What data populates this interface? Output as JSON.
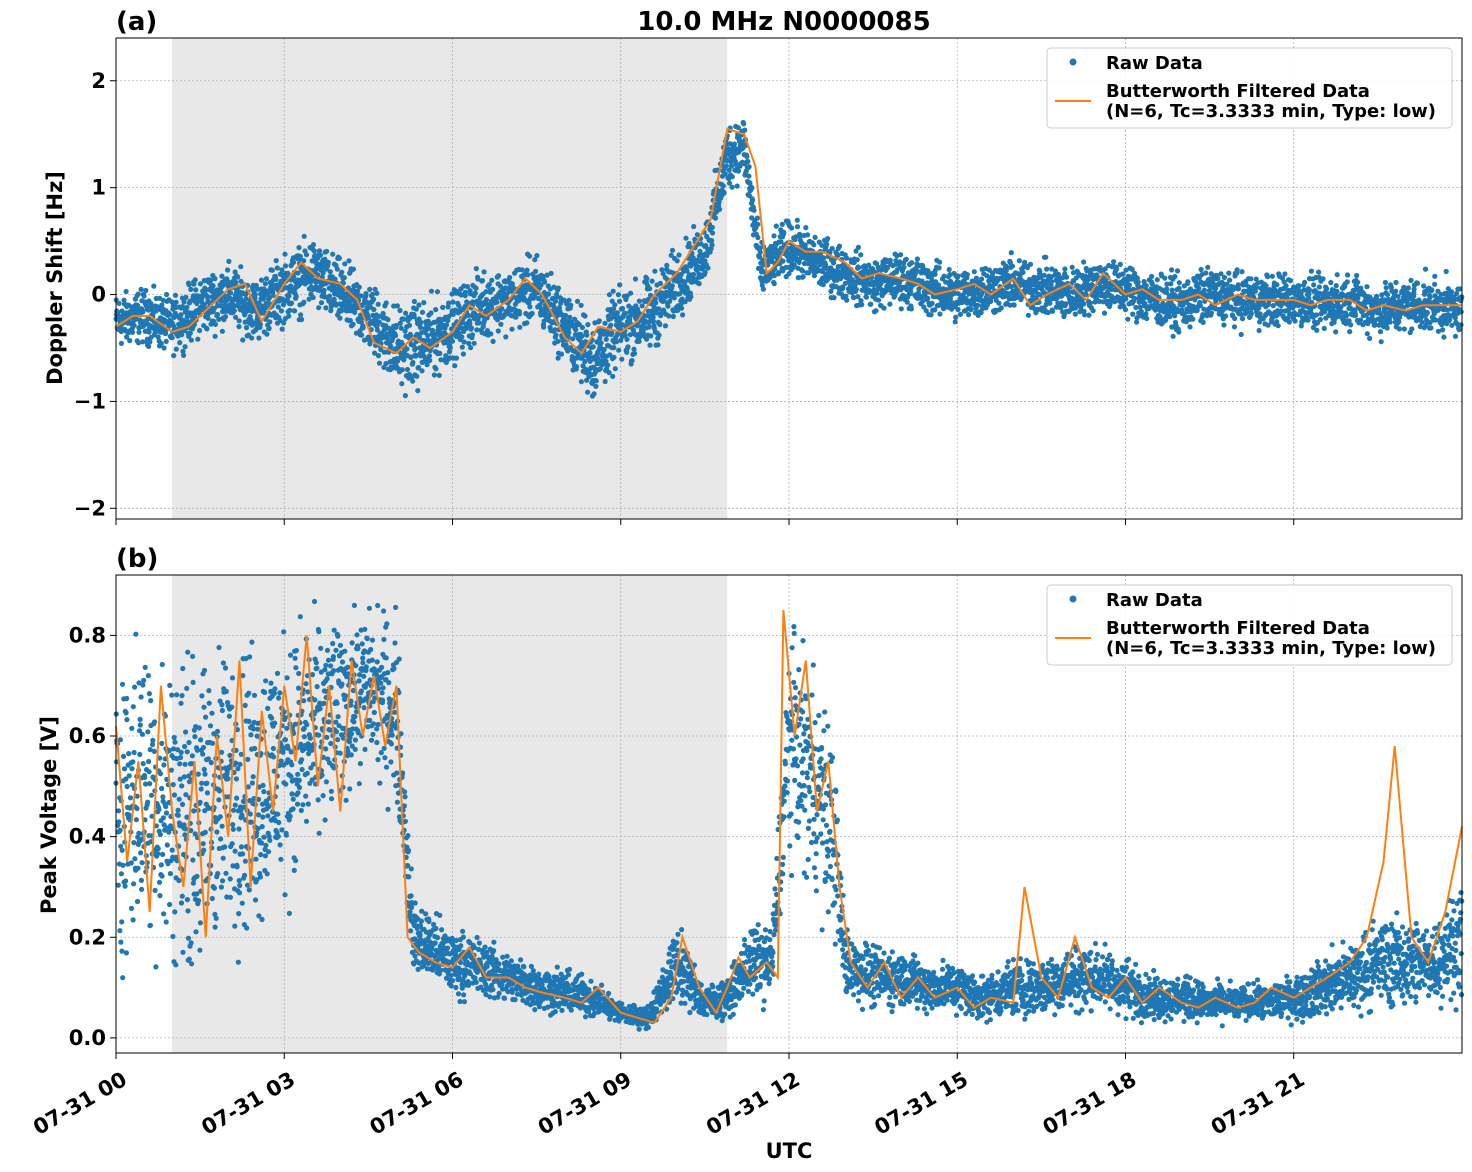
{
  "figure": {
    "title": "10.0 MHz N0000085",
    "xlabel": "UTC",
    "x_tick_labels": [
      "07-31 00",
      "07-31 03",
      "07-31 06",
      "07-31 09",
      "07-31 12",
      "07-31 15",
      "07-31 18",
      "07-31 21"
    ],
    "colors": {
      "raw": "#1f77b4",
      "filtered": "#ff7f0e",
      "shade": "#e8e8e8",
      "grid": "#b0b0b0"
    }
  },
  "legend": {
    "raw_label": "Raw Data",
    "filtered_label_line1": "Butterworth Filtered Data",
    "filtered_label_line2": "(N=6, Tc=3.3333 min, Type: low)"
  },
  "chart_data": [
    {
      "type": "scatter",
      "panel_label": "(a)",
      "title": "10.0 MHz N0000085",
      "xlabel": "",
      "ylabel": "Doppler Shift [Hz]",
      "x_unit": "hours after 07-31 00:00 UTC",
      "xlim": [
        0,
        24
      ],
      "ylim": [
        -2.1,
        2.4
      ],
      "y_ticks": [
        -2,
        -1,
        0,
        1,
        2
      ],
      "y_tick_labels": [
        "−2",
        "−1",
        "0",
        "1",
        "2"
      ],
      "grid": true,
      "legend_position": "top-right",
      "shaded_interval": [
        1.0,
        10.9
      ],
      "series": [
        {
          "name": "Raw Data",
          "style": "points",
          "x": [
            0,
            0.5,
            1,
            1.5,
            2,
            2.5,
            3,
            3.5,
            4,
            4.5,
            5,
            5.5,
            6,
            6.5,
            7,
            7.5,
            8,
            8.5,
            9,
            9.5,
            10,
            10.5,
            10.9,
            11.2,
            11.5,
            12,
            12.5,
            13,
            13.5,
            14,
            14.5,
            15,
            15.5,
            16,
            16.5,
            17,
            17.5,
            18,
            18.5,
            19,
            19.5,
            20,
            20.5,
            21,
            21.5,
            22,
            22.5,
            23,
            23.5,
            24
          ],
          "center": [
            -0.25,
            -0.2,
            -0.3,
            -0.1,
            0.0,
            -0.15,
            0.05,
            0.2,
            0.0,
            -0.2,
            -0.5,
            -0.45,
            -0.3,
            -0.1,
            -0.05,
            0.05,
            -0.3,
            -0.6,
            -0.3,
            -0.2,
            0.1,
            0.4,
            1.3,
            1.4,
            0.2,
            0.45,
            0.3,
            0.2,
            0.1,
            0.15,
            0.05,
            0.0,
            0.05,
            0.1,
            0.05,
            0.0,
            0.1,
            0.05,
            -0.05,
            -0.1,
            0.0,
            -0.05,
            -0.05,
            -0.05,
            -0.1,
            -0.05,
            -0.15,
            -0.1,
            -0.1,
            -0.15
          ],
          "spread": [
            0.35,
            0.35,
            0.35,
            0.4,
            0.4,
            0.4,
            0.45,
            0.45,
            0.45,
            0.45,
            0.55,
            0.55,
            0.45,
            0.45,
            0.4,
            0.45,
            0.45,
            0.55,
            0.5,
            0.5,
            0.45,
            0.4,
            0.45,
            0.4,
            0.35,
            0.35,
            0.35,
            0.35,
            0.35,
            0.35,
            0.35,
            0.35,
            0.35,
            0.35,
            0.35,
            0.35,
            0.35,
            0.35,
            0.35,
            0.35,
            0.35,
            0.35,
            0.35,
            0.35,
            0.35,
            0.35,
            0.35,
            0.35,
            0.35,
            0.35
          ]
        },
        {
          "name": "Butterworth Filtered Data (N=6, Tc=3.3333 min, Type: low)",
          "style": "line",
          "x": [
            0,
            0.3,
            0.6,
            1,
            1.3,
            1.6,
            2,
            2.3,
            2.6,
            3,
            3.3,
            3.6,
            4,
            4.3,
            4.6,
            5,
            5.3,
            5.6,
            6,
            6.3,
            6.6,
            7,
            7.3,
            7.6,
            8,
            8.3,
            8.6,
            9,
            9.3,
            9.6,
            10,
            10.3,
            10.6,
            10.9,
            11.2,
            11.4,
            11.6,
            11.8,
            12,
            12.3,
            12.6,
            13,
            13.3,
            13.6,
            14,
            14.3,
            14.6,
            15,
            15.3,
            15.6,
            16,
            16.3,
            16.6,
            17,
            17.3,
            17.6,
            18,
            18.3,
            18.6,
            19,
            19.3,
            19.6,
            20,
            20.3,
            20.6,
            21,
            21.3,
            21.6,
            22,
            22.3,
            22.6,
            23,
            23.3,
            23.6,
            24
          ],
          "y": [
            -0.3,
            -0.2,
            -0.2,
            -0.35,
            -0.3,
            -0.15,
            0.05,
            0.1,
            -0.25,
            0.1,
            0.3,
            0.15,
            0.1,
            -0.05,
            -0.45,
            -0.55,
            -0.4,
            -0.5,
            -0.35,
            -0.1,
            -0.2,
            -0.05,
            0.15,
            0.0,
            -0.4,
            -0.55,
            -0.3,
            -0.35,
            -0.25,
            0.0,
            0.2,
            0.45,
            0.7,
            1.55,
            1.5,
            1.2,
            0.2,
            0.3,
            0.5,
            0.4,
            0.4,
            0.3,
            0.15,
            0.2,
            0.15,
            0.1,
            0.0,
            0.05,
            0.1,
            0.0,
            0.15,
            -0.1,
            0.0,
            0.1,
            -0.05,
            0.2,
            0.0,
            0.05,
            -0.05,
            -0.05,
            0.0,
            -0.1,
            0.0,
            -0.05,
            -0.05,
            -0.05,
            -0.1,
            -0.05,
            -0.05,
            -0.15,
            -0.1,
            -0.15,
            -0.1,
            -0.1,
            -0.1
          ]
        }
      ]
    },
    {
      "type": "scatter",
      "panel_label": "(b)",
      "title": "",
      "xlabel": "UTC",
      "ylabel": "Peak Voltage [V]",
      "x_unit": "hours after 07-31 00:00 UTC",
      "xlim": [
        0,
        24
      ],
      "ylim": [
        -0.03,
        0.92
      ],
      "y_ticks": [
        0.0,
        0.2,
        0.4,
        0.6,
        0.8
      ],
      "y_tick_labels": [
        "0.0",
        "0.2",
        "0.4",
        "0.6",
        "0.8"
      ],
      "grid": true,
      "legend_position": "top-right",
      "shaded_interval": [
        1.0,
        10.9
      ],
      "series": [
        {
          "name": "Raw Data",
          "style": "points",
          "x": [
            0,
            0.5,
            1,
            1.5,
            2,
            2.5,
            3,
            3.5,
            4,
            4.5,
            5,
            5.3,
            5.6,
            6,
            6.5,
            7,
            7.5,
            8,
            8.5,
            9,
            9.5,
            10,
            10.5,
            10.9,
            11.3,
            11.7,
            12,
            12.5,
            12.8,
            13,
            13.5,
            14,
            14.5,
            15,
            15.5,
            16,
            16.5,
            17,
            17.5,
            18,
            18.5,
            19,
            19.5,
            20,
            20.5,
            21,
            21.5,
            22,
            22.5,
            23,
            23.5,
            24
          ],
          "center": [
            0.45,
            0.5,
            0.45,
            0.45,
            0.5,
            0.5,
            0.55,
            0.6,
            0.65,
            0.7,
            0.65,
            0.2,
            0.18,
            0.15,
            0.14,
            0.12,
            0.1,
            0.09,
            0.08,
            0.05,
            0.04,
            0.15,
            0.07,
            0.08,
            0.15,
            0.15,
            0.6,
            0.5,
            0.4,
            0.15,
            0.12,
            0.12,
            0.1,
            0.1,
            0.08,
            0.1,
            0.1,
            0.12,
            0.12,
            0.1,
            0.08,
            0.08,
            0.07,
            0.07,
            0.07,
            0.08,
            0.1,
            0.12,
            0.15,
            0.15,
            0.15,
            0.2
          ],
          "spread": [
            0.4,
            0.4,
            0.4,
            0.4,
            0.4,
            0.4,
            0.35,
            0.3,
            0.25,
            0.2,
            0.25,
            0.1,
            0.1,
            0.09,
            0.08,
            0.07,
            0.06,
            0.06,
            0.05,
            0.03,
            0.03,
            0.1,
            0.05,
            0.05,
            0.1,
            0.1,
            0.28,
            0.3,
            0.25,
            0.1,
            0.08,
            0.08,
            0.07,
            0.07,
            0.06,
            0.08,
            0.08,
            0.09,
            0.09,
            0.08,
            0.06,
            0.06,
            0.05,
            0.05,
            0.05,
            0.06,
            0.08,
            0.1,
            0.12,
            0.12,
            0.12,
            0.15
          ]
        },
        {
          "name": "Butterworth Filtered Data (N=6, Tc=3.3333 min, Type: low)",
          "style": "line",
          "x": [
            0,
            0.2,
            0.4,
            0.6,
            0.8,
            1,
            1.2,
            1.4,
            1.6,
            1.8,
            2,
            2.2,
            2.4,
            2.6,
            2.8,
            3,
            3.2,
            3.4,
            3.6,
            3.8,
            4,
            4.2,
            4.4,
            4.6,
            4.8,
            5,
            5.2,
            5.4,
            5.7,
            6,
            6.3,
            6.6,
            7,
            7.3,
            7.6,
            8,
            8.3,
            8.6,
            9,
            9.3,
            9.6,
            9.9,
            10.1,
            10.4,
            10.7,
            10.9,
            11.1,
            11.3,
            11.6,
            11.8,
            11.9,
            12.1,
            12.3,
            12.5,
            12.7,
            12.9,
            13.1,
            13.4,
            13.7,
            14,
            14.3,
            14.6,
            15,
            15.3,
            15.6,
            16,
            16.2,
            16.5,
            16.8,
            17.1,
            17.4,
            17.7,
            18,
            18.3,
            18.6,
            19,
            19.3,
            19.6,
            20,
            20.3,
            20.6,
            21,
            21.3,
            21.6,
            22,
            22.3,
            22.6,
            22.8,
            23.1,
            23.4,
            23.7,
            24
          ],
          "y": [
            0.62,
            0.35,
            0.55,
            0.25,
            0.7,
            0.45,
            0.3,
            0.55,
            0.2,
            0.6,
            0.4,
            0.75,
            0.3,
            0.65,
            0.45,
            0.7,
            0.55,
            0.8,
            0.5,
            0.7,
            0.45,
            0.75,
            0.6,
            0.72,
            0.58,
            0.7,
            0.2,
            0.17,
            0.15,
            0.14,
            0.18,
            0.12,
            0.12,
            0.1,
            0.09,
            0.08,
            0.07,
            0.1,
            0.05,
            0.04,
            0.03,
            0.08,
            0.2,
            0.1,
            0.05,
            0.1,
            0.16,
            0.12,
            0.15,
            0.12,
            0.85,
            0.6,
            0.75,
            0.45,
            0.55,
            0.3,
            0.15,
            0.1,
            0.15,
            0.08,
            0.12,
            0.08,
            0.1,
            0.06,
            0.08,
            0.07,
            0.3,
            0.12,
            0.08,
            0.2,
            0.1,
            0.08,
            0.12,
            0.07,
            0.1,
            0.07,
            0.06,
            0.08,
            0.06,
            0.07,
            0.1,
            0.08,
            0.1,
            0.12,
            0.15,
            0.2,
            0.35,
            0.58,
            0.2,
            0.15,
            0.25,
            0.42
          ]
        }
      ]
    }
  ]
}
